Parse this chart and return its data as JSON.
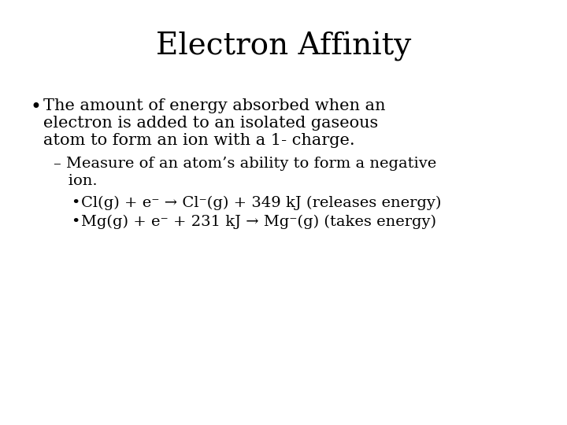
{
  "title": "Electron Affinity",
  "background_color": "#ffffff",
  "text_color": "#000000",
  "title_fontsize": 28,
  "title_font": "serif",
  "body_fontsize": 15,
  "body_font": "serif",
  "bullet1_line1": "The amount of energy absorbed when an",
  "bullet1_line2": "electron is added to an isolated gaseous",
  "bullet1_line3": "atom to form an ion with a 1- charge.",
  "sub_bullet_line1": "– Measure of an atom’s ability to form a negative",
  "sub_bullet_line2": "   ion.",
  "sub_sub_bullet1": "Cl(g) + e⁻ → Cl⁻(g) + 349 kJ (releases energy)",
  "sub_sub_bullet2": "Mg(g) + e⁻ + 231 kJ → Mg⁻(g) (takes energy)"
}
